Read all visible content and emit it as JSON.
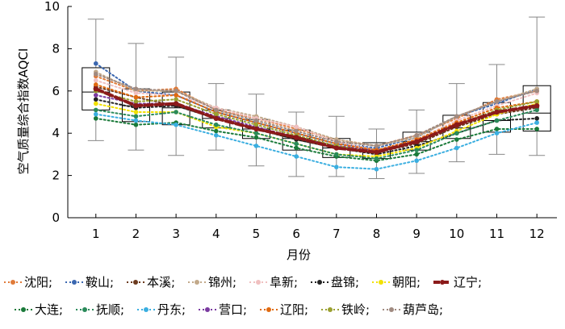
{
  "chart_data": {
    "type": "line",
    "xlabel": "月份",
    "ylabel": "空气质量综合指数AQCI",
    "xlim": [
      0.3,
      12.5
    ],
    "ylim": [
      0,
      10
    ],
    "x_ticks": [
      "1",
      "2",
      "3",
      "4",
      "5",
      "6",
      "7",
      "8",
      "9",
      "10",
      "11",
      "12"
    ],
    "y_ticks": [
      "0",
      "2",
      "4",
      "6",
      "8",
      "10"
    ],
    "grid": false,
    "legend_position": "bottom",
    "boxplot": [
      {
        "month": 1,
        "whisker_low": 3.65,
        "q1": 5.1,
        "median": 5.95,
        "q3": 7.1,
        "whisker_high": 9.4
      },
      {
        "month": 2,
        "whisker_low": 3.2,
        "q1": 4.55,
        "median": 5.3,
        "q3": 6.1,
        "whisker_high": 8.25
      },
      {
        "month": 3,
        "whisker_low": 2.95,
        "q1": 4.4,
        "median": 5.2,
        "q3": 5.95,
        "whisker_high": 7.6
      },
      {
        "month": 4,
        "whisker_low": 3.2,
        "q1": 4.25,
        "median": 4.7,
        "q3": 5.1,
        "whisker_high": 6.35
      },
      {
        "month": 5,
        "whisker_low": 2.45,
        "q1": 3.75,
        "median": 4.2,
        "q3": 4.65,
        "whisker_high": 5.85
      },
      {
        "month": 6,
        "whisker_low": 1.95,
        "q1": 3.2,
        "median": 3.75,
        "q3": 4.15,
        "whisker_high": 5.0
      },
      {
        "month": 7,
        "whisker_low": 1.95,
        "q1": 2.85,
        "median": 3.3,
        "q3": 3.75,
        "whisker_high": 4.8
      },
      {
        "month": 8,
        "whisker_low": 1.85,
        "q1": 2.8,
        "median": 3.25,
        "q3": 3.55,
        "whisker_high": 4.2
      },
      {
        "month": 9,
        "whisker_low": 2.1,
        "q1": 3.2,
        "median": 3.6,
        "q3": 4.05,
        "whisker_high": 5.1
      },
      {
        "month": 10,
        "whisker_low": 2.65,
        "q1": 3.75,
        "median": 4.25,
        "q3": 4.85,
        "whisker_high": 6.35
      },
      {
        "month": 11,
        "whisker_low": 3.0,
        "q1": 4.05,
        "median": 4.6,
        "q3": 5.45,
        "whisker_high": 7.25
      },
      {
        "month": 12,
        "whisker_low": 2.95,
        "q1": 4.1,
        "median": 4.95,
        "q3": 6.25,
        "whisker_high": 9.5
      }
    ],
    "series": [
      {
        "name": "沈阳",
        "color": "#e07b39",
        "style": "dotted",
        "values": [
          6.7,
          6.0,
          6.1,
          5.1,
          4.7,
          4.2,
          3.7,
          3.4,
          3.9,
          4.7,
          5.6,
          6.0
        ]
      },
      {
        "name": "鞍山",
        "color": "#3b67b0",
        "style": "dotted",
        "values": [
          7.3,
          6.0,
          5.8,
          5.0,
          4.5,
          4.0,
          3.5,
          3.3,
          3.8,
          4.8,
          5.4,
          6.1
        ]
      },
      {
        "name": "本溪",
        "color": "#6b3a1e",
        "style": "dotted",
        "values": [
          6.2,
          5.7,
          5.3,
          4.7,
          4.2,
          3.7,
          3.3,
          3.1,
          3.5,
          4.3,
          4.9,
          5.2
        ]
      },
      {
        "name": "锦州",
        "color": "#c2a98a",
        "style": "dotted",
        "values": [
          6.9,
          6.0,
          6.0,
          5.2,
          4.8,
          4.3,
          3.7,
          3.4,
          3.8,
          4.8,
          5.5,
          6.1
        ]
      },
      {
        "name": "阜新",
        "color": "#f0c0c0",
        "style": "dotted",
        "values": [
          6.5,
          5.9,
          5.8,
          5.2,
          4.7,
          4.3,
          3.6,
          3.2,
          3.7,
          4.6,
          5.3,
          5.9
        ]
      },
      {
        "name": "盘锦",
        "color": "#222222",
        "style": "dotted",
        "values": [
          5.6,
          5.2,
          5.3,
          4.7,
          4.2,
          3.7,
          3.3,
          3.0,
          3.4,
          4.0,
          4.6,
          4.7
        ]
      },
      {
        "name": "朝阳",
        "color": "#f2e100",
        "style": "dotted",
        "values": [
          5.4,
          5.0,
          5.0,
          4.3,
          4.0,
          3.5,
          3.0,
          2.9,
          3.3,
          4.1,
          4.9,
          5.4
        ]
      },
      {
        "name": "辽宁",
        "color": "#8b1a1a",
        "style": "dashed",
        "values": [
          6.1,
          5.3,
          5.4,
          4.7,
          4.2,
          3.8,
          3.3,
          3.1,
          3.6,
          4.4,
          5.0,
          5.3
        ]
      },
      {
        "name": "大连",
        "color": "#1a7a3a",
        "style": "dotted",
        "values": [
          4.7,
          4.4,
          4.5,
          4.1,
          3.8,
          3.3,
          2.9,
          2.7,
          3.0,
          3.7,
          4.2,
          4.2
        ]
      },
      {
        "name": "抚顺",
        "color": "#2a8a5a",
        "style": "dotted",
        "values": [
          5.1,
          4.8,
          5.0,
          4.4,
          4.0,
          3.5,
          3.0,
          2.8,
          3.2,
          4.0,
          4.6,
          5.1
        ]
      },
      {
        "name": "丹东",
        "color": "#3aaee0",
        "style": "dotted",
        "values": [
          4.9,
          4.6,
          4.4,
          3.9,
          3.4,
          2.9,
          2.4,
          2.3,
          2.7,
          3.3,
          4.0,
          4.5
        ]
      },
      {
        "name": "营口",
        "color": "#7a3aa0",
        "style": "dotted",
        "values": [
          5.8,
          5.4,
          5.4,
          4.8,
          4.3,
          3.8,
          3.4,
          3.2,
          3.6,
          4.4,
          5.0,
          5.3
        ]
      },
      {
        "name": "辽阳",
        "color": "#e06a10",
        "style": "dotted",
        "values": [
          6.3,
          5.7,
          5.8,
          5.0,
          4.5,
          4.0,
          3.5,
          3.2,
          3.7,
          4.5,
          5.2,
          5.5
        ]
      },
      {
        "name": "铁岭",
        "color": "#9aa030",
        "style": "dotted",
        "values": [
          6.0,
          5.5,
          5.6,
          4.9,
          4.4,
          3.9,
          3.4,
          3.1,
          3.6,
          4.4,
          5.1,
          5.5
        ]
      },
      {
        "name": "葫芦岛",
        "color": "#a08a80",
        "style": "dotted",
        "values": [
          6.8,
          6.1,
          6.0,
          5.1,
          4.6,
          4.1,
          3.6,
          3.4,
          3.9,
          4.8,
          5.5,
          6.0
        ]
      }
    ]
  }
}
